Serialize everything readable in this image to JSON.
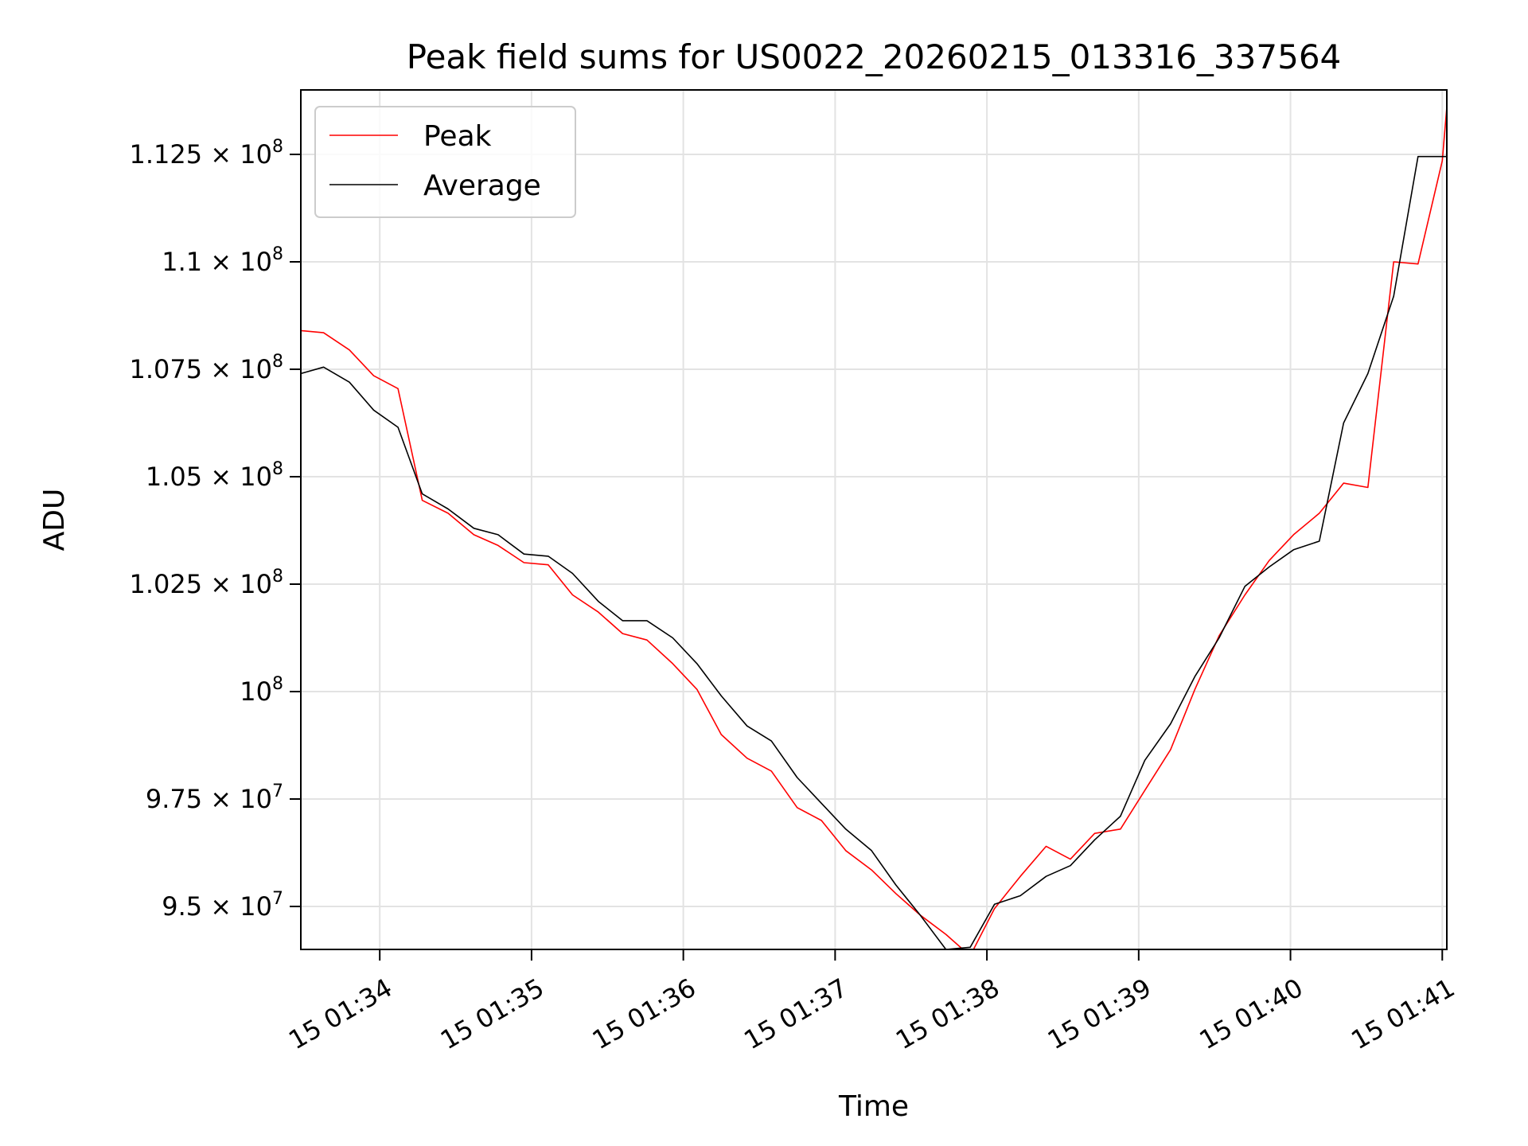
{
  "chart_data": {
    "type": "line",
    "title": "Peak field sums for US0022_20260215_013316_337564",
    "xlabel": "Time",
    "ylabel": "ADU",
    "xlim_minutes": [
      0.0,
      7.55
    ],
    "ylim": [
      94000000,
      114000000
    ],
    "x_ticks": [
      {
        "minute": 0.52,
        "label": "15 01:34"
      },
      {
        "minute": 1.52,
        "label": "15 01:35"
      },
      {
        "minute": 2.52,
        "label": "15 01:36"
      },
      {
        "minute": 3.52,
        "label": "15 01:37"
      },
      {
        "minute": 4.52,
        "label": "15 01:38"
      },
      {
        "minute": 5.52,
        "label": "15 01:39"
      },
      {
        "minute": 6.52,
        "label": "15 01:40"
      },
      {
        "minute": 7.52,
        "label": "15 01:41"
      }
    ],
    "y_ticks": [
      {
        "value": 95000000,
        "mantissa": "9.5",
        "exp": "7"
      },
      {
        "value": 97500000,
        "mantissa": "9.75",
        "exp": "7"
      },
      {
        "value": 100000000,
        "mantissa": "",
        "exp": "8"
      },
      {
        "value": 102500000,
        "mantissa": "1.025",
        "exp": "8"
      },
      {
        "value": 105000000,
        "mantissa": "1.05",
        "exp": "8"
      },
      {
        "value": 107500000,
        "mantissa": "1.075",
        "exp": "8"
      },
      {
        "value": 110000000,
        "mantissa": "1.1",
        "exp": "8"
      },
      {
        "value": 112500000,
        "mantissa": "1.125",
        "exp": "8"
      }
    ],
    "grid": true,
    "legend_position": "upper-left",
    "x": [
      0.0,
      0.15,
      0.32,
      0.48,
      0.64,
      0.8,
      0.97,
      1.14,
      1.3,
      1.47,
      1.63,
      1.79,
      1.96,
      2.12,
      2.28,
      2.45,
      2.61,
      2.77,
      2.94,
      3.1,
      3.27,
      3.43,
      3.59,
      3.76,
      3.92,
      4.08,
      4.25,
      4.41,
      4.57,
      4.74,
      4.91,
      5.07,
      5.23,
      5.4,
      5.56,
      5.73,
      5.89,
      6.05,
      6.22,
      6.38,
      6.54,
      6.71,
      6.87,
      7.03,
      7.2,
      7.36,
      7.52,
      7.55
    ],
    "series": [
      {
        "name": "Peak",
        "color": "#ff0000",
        "values": [
          108400000,
          108350000,
          107950000,
          107350000,
          107050000,
          104450000,
          104150000,
          103650000,
          103400000,
          103000000,
          102950000,
          102250000,
          101850000,
          101350000,
          101200000,
          100650000,
          100050000,
          99000000,
          98450000,
          98150000,
          97300000,
          97000000,
          96300000,
          95850000,
          95300000,
          94800000,
          94350000,
          93850000,
          94950000,
          95700000,
          96400000,
          96100000,
          96700000,
          96800000,
          97700000,
          98650000,
          100050000,
          101300000,
          102250000,
          103050000,
          103650000,
          104150000,
          104850000,
          104750000,
          110000000,
          109950000,
          112350000,
          113600000
        ]
      },
      {
        "name": "Average",
        "color": "#000000",
        "values": [
          107400000,
          107550000,
          107200000,
          106550000,
          106150000,
          104600000,
          104250000,
          103800000,
          103650000,
          103200000,
          103150000,
          102750000,
          102100000,
          101650000,
          101650000,
          101250000,
          100650000,
          99900000,
          99200000,
          98850000,
          98000000,
          97400000,
          96800000,
          96300000,
          95500000,
          94800000,
          94000000,
          94050000,
          95050000,
          95250000,
          95700000,
          95950000,
          96550000,
          97100000,
          98400000,
          99250000,
          100350000,
          101250000,
          102450000,
          102900000,
          103300000,
          103500000,
          106250000,
          107400000,
          109200000,
          112450000,
          112450000,
          112450000
        ]
      }
    ]
  }
}
